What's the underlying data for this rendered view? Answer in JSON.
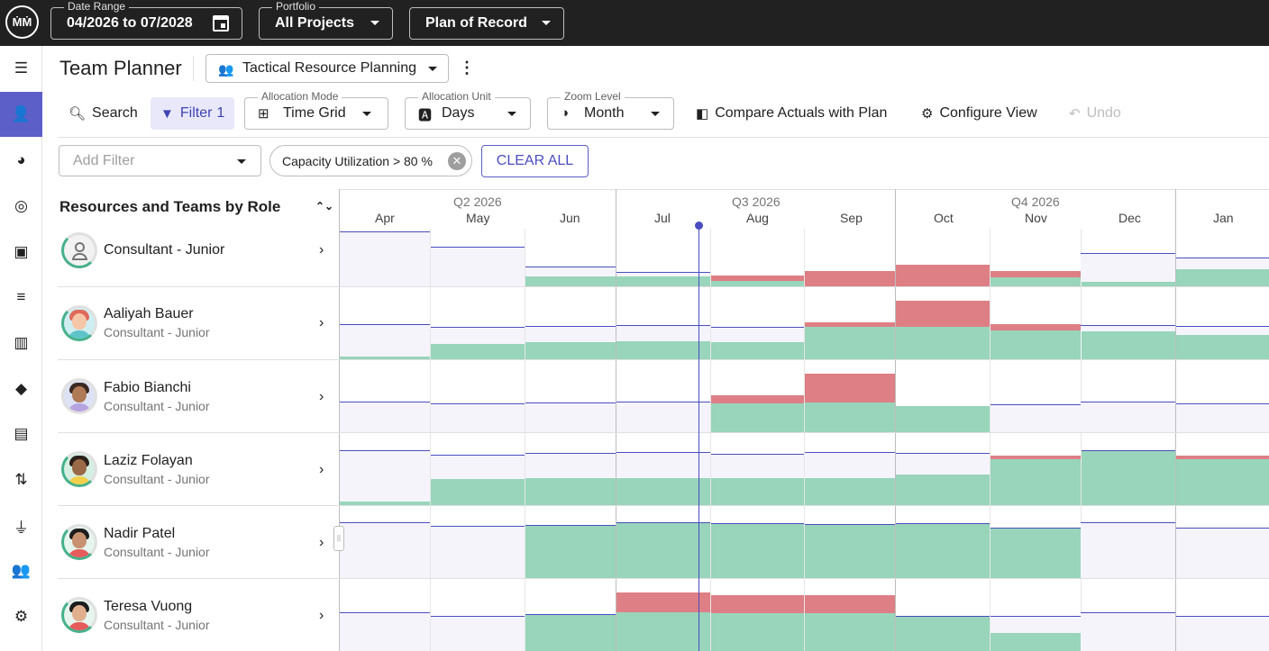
{
  "topbar": {
    "date_range_label": "Date Range",
    "date_range_value": "04/2026 to 07/2028",
    "portfolio_label": "Portfolio",
    "portfolio_value": "All Projects",
    "plan_value": "Plan of Record"
  },
  "header": {
    "title": "Team Planner",
    "view_name": "Tactical Resource Planning"
  },
  "toolbar": {
    "search_label": "Search",
    "filter_label": "Filter",
    "filter_count": "1",
    "allocation_mode_label": "Allocation Mode",
    "allocation_mode_value": "Time Grid",
    "allocation_unit_label": "Allocation Unit",
    "allocation_unit_value": "Days",
    "zoom_level_label": "Zoom Level",
    "zoom_level_value": "Month",
    "compare_label": "Compare Actuals with Plan",
    "configure_label": "Configure View",
    "undo_label": "Undo"
  },
  "filters": {
    "add_filter_placeholder": "Add Filter",
    "active_chip": "Capacity Utilization > 80 %",
    "clear_all_label": "CLEAR ALL"
  },
  "list": {
    "header": "Resources and Teams by Role",
    "rows": [
      {
        "name": "Consultant - Junior",
        "role": ""
      },
      {
        "name": "Aaliyah Bauer",
        "role": "Consultant - Junior"
      },
      {
        "name": "Fabio Bianchi",
        "role": "Consultant - Junior"
      },
      {
        "name": "Laziz Folayan",
        "role": "Consultant - Junior"
      },
      {
        "name": "Nadir Patel",
        "role": "Consultant - Junior"
      },
      {
        "name": "Teresa Vuong",
        "role": "Consultant - Junior"
      }
    ]
  },
  "timeline": {
    "quarters": [
      "Q2 2026",
      "Q3 2026",
      "Q4 2026"
    ],
    "months": [
      "Apr",
      "May",
      "Jun",
      "Jul",
      "Aug",
      "Sep",
      "Oct",
      "Nov",
      "Dec",
      "Jan"
    ]
  },
  "colors": {
    "accent": "#5c5fc8",
    "allocated": "#98d5bb",
    "overallocated": "#de7f85",
    "capacity_line": "#4a4dc0"
  }
}
